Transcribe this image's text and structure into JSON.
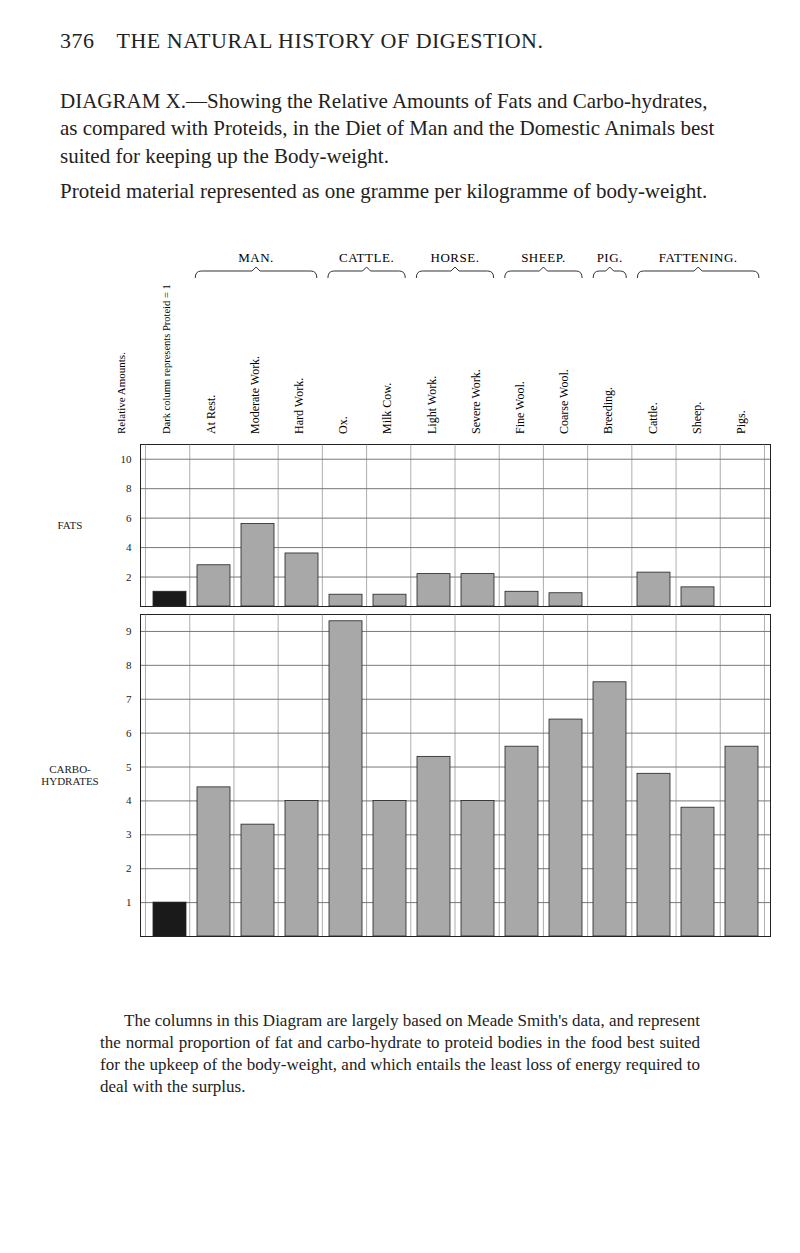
{
  "page": {
    "number": "376",
    "running_head": "THE NATURAL HISTORY OF DIGESTION."
  },
  "title": "DIAGRAM X.—Showing the Relative Amounts of Fats and Carbo-hydrates, as compared with Proteids, in the Diet of Man and the Domestic Animals best suited for keeping up the Body-weight.",
  "subtitle": "Proteid material represented as one gramme per kilogramme of body-weight.",
  "header": {
    "proteid_label": "Dark column represents Proteid = 1",
    "axis_label": "Relative Amounts.",
    "groups": [
      {
        "name": "Man.",
        "categories": [
          "At Rest.",
          "Moderate Work.",
          "Hard Work."
        ]
      },
      {
        "name": "Cattle.",
        "categories": [
          "Ox.",
          "Milk Cow."
        ]
      },
      {
        "name": "Horse.",
        "categories": [
          "Light Work.",
          "Severe Work."
        ]
      },
      {
        "name": "Sheep.",
        "categories": [
          "Fine Wool.",
          "Coarse Wool."
        ]
      },
      {
        "name": "Pig.",
        "categories": [
          "Breeding."
        ]
      },
      {
        "name": "Fattening.",
        "categories": [
          "Cattle.",
          "Sheep.",
          "Pigs."
        ]
      }
    ]
  },
  "chart_data": [
    {
      "type": "bar",
      "name": "FATS",
      "categories": [
        "At Rest.",
        "Moderate Work.",
        "Hard Work.",
        "Ox.",
        "Milk Cow.",
        "Light Work.",
        "Severe Work.",
        "Fine Wool.",
        "Coarse Wool.",
        "Breeding.",
        "Cattle.",
        "Sheep.",
        "Pigs."
      ],
      "values": [
        2.8,
        5.6,
        3.6,
        0.8,
        0.8,
        2.2,
        2.2,
        1.0,
        0.9,
        0,
        2.3,
        1.3,
        0
      ],
      "proteid": 1,
      "color": "#a8a8a8",
      "proteid_color": "#1a1a1a",
      "ylim": [
        0,
        11
      ],
      "yticks": [
        2,
        4,
        6,
        8,
        10
      ],
      "grid": true
    },
    {
      "type": "bar",
      "name": "CARBO-HYDRATES",
      "categories": [
        "At Rest.",
        "Moderate Work.",
        "Hard Work.",
        "Ox.",
        "Milk Cow.",
        "Light Work.",
        "Severe Work.",
        "Fine Wool.",
        "Coarse Wool.",
        "Breeding.",
        "Cattle.",
        "Sheep.",
        "Pigs."
      ],
      "values": [
        4.4,
        3.3,
        4.0,
        9.3,
        4.0,
        5.3,
        4.0,
        5.6,
        6.4,
        7.5,
        4.8,
        3.8,
        5.6
      ],
      "proteid": 1,
      "color": "#a8a8a8",
      "proteid_color": "#1a1a1a",
      "ylim": [
        0,
        9.5
      ],
      "yticks": [
        1,
        2,
        3,
        4,
        5,
        6,
        7,
        8,
        9
      ],
      "grid": true
    }
  ],
  "caption": "The columns in this Diagram are largely based on Meade Smith's data, and represent the normal proportion of fat and carbo-hydrate to proteid bodies in the food best suited for the upkeep of the body-weight, and which entails the least loss of energy required to deal with the surplus."
}
